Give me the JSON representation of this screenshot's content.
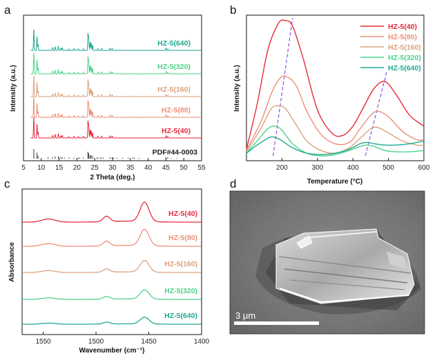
{
  "colors": {
    "HZ-5(40)": "#e8283a",
    "HZ-5(80)": "#ec8f78",
    "HZ-5(160)": "#dca27b",
    "HZ-5(320)": "#4cd28a",
    "HZ-5(640)": "#1fa891",
    "reference": "#444444",
    "peak_guides": "#7b3fe4"
  },
  "chart_data": [
    {
      "panel": "a",
      "type": "line",
      "xlabel": "2 Theta (deg.)",
      "ylabel": "Intensity (a.u.)",
      "xlim": [
        5,
        55
      ],
      "xticks": [
        5,
        10,
        15,
        20,
        25,
        30,
        35,
        40,
        45,
        50,
        55
      ],
      "stacked": true,
      "series": [
        {
          "name": "HZ-5(640)",
          "order": 5
        },
        {
          "name": "HZ-5(320)",
          "order": 4
        },
        {
          "name": "HZ-5(160)",
          "order": 3
        },
        {
          "name": "HZ-5(80)",
          "order": 2
        },
        {
          "name": "HZ-5(40)",
          "order": 1
        }
      ],
      "reference": {
        "name": "PDF#44-0003",
        "peaks": [
          {
            "x": 7.9,
            "h": 1.0
          },
          {
            "x": 8.8,
            "h": 0.62
          },
          {
            "x": 9.1,
            "h": 0.3
          },
          {
            "x": 11.9,
            "h": 0.15
          },
          {
            "x": 13.2,
            "h": 0.16
          },
          {
            "x": 13.9,
            "h": 0.22
          },
          {
            "x": 14.8,
            "h": 0.25
          },
          {
            "x": 15.5,
            "h": 0.14
          },
          {
            "x": 15.9,
            "h": 0.14
          },
          {
            "x": 16.5,
            "h": 0.1
          },
          {
            "x": 17.8,
            "h": 0.12
          },
          {
            "x": 19.2,
            "h": 0.1
          },
          {
            "x": 20.4,
            "h": 0.12
          },
          {
            "x": 20.8,
            "h": 0.1
          },
          {
            "x": 21.8,
            "h": 0.12
          },
          {
            "x": 23.1,
            "h": 0.72
          },
          {
            "x": 23.3,
            "h": 0.55
          },
          {
            "x": 23.7,
            "h": 0.38
          },
          {
            "x": 24.0,
            "h": 0.34
          },
          {
            "x": 24.4,
            "h": 0.28
          },
          {
            "x": 25.6,
            "h": 0.1
          },
          {
            "x": 25.9,
            "h": 0.12
          },
          {
            "x": 26.6,
            "h": 0.1
          },
          {
            "x": 26.9,
            "h": 0.12
          },
          {
            "x": 27.4,
            "h": 0.1
          },
          {
            "x": 29.3,
            "h": 0.14
          },
          {
            "x": 29.9,
            "h": 0.14
          },
          {
            "x": 30.3,
            "h": 0.12
          },
          {
            "x": 31.3,
            "h": 0.1
          },
          {
            "x": 32.8,
            "h": 0.1
          },
          {
            "x": 34.4,
            "h": 0.1
          },
          {
            "x": 35.7,
            "h": 0.1
          },
          {
            "x": 36.1,
            "h": 0.1
          },
          {
            "x": 37.5,
            "h": 0.08
          },
          {
            "x": 45.0,
            "h": 0.14
          },
          {
            "x": 45.5,
            "h": 0.14
          },
          {
            "x": 46.5,
            "h": 0.06
          },
          {
            "x": 48.0,
            "h": 0.06
          }
        ]
      }
    },
    {
      "panel": "b",
      "type": "line",
      "xlabel": "Temperature (°C)",
      "ylabel": "Intensity (a.u.)",
      "xlim": [
        100,
        600
      ],
      "xticks": [
        200,
        300,
        400,
        500,
        600
      ],
      "legend": "top-right",
      "series": [
        {
          "name": "HZ-5(40)",
          "x": [
            100,
            130,
            160,
            190,
            210,
            230,
            260,
            300,
            340,
            370,
            400,
            430,
            460,
            490,
            520,
            560,
            600
          ],
          "values": [
            0.05,
            0.38,
            0.78,
            0.98,
            1.0,
            0.96,
            0.72,
            0.34,
            0.17,
            0.15,
            0.22,
            0.36,
            0.5,
            0.55,
            0.46,
            0.3,
            0.22
          ]
        },
        {
          "name": "HZ-5(80)",
          "x": [
            100,
            140,
            170,
            190,
            210,
            240,
            270,
            310,
            350,
            390,
            420,
            450,
            470,
            500,
            540,
            580,
            600
          ],
          "values": [
            0.04,
            0.25,
            0.46,
            0.56,
            0.59,
            0.52,
            0.33,
            0.16,
            0.09,
            0.1,
            0.2,
            0.3,
            0.33,
            0.29,
            0.18,
            0.12,
            0.12
          ]
        },
        {
          "name": "HZ-5(160)",
          "x": [
            100,
            140,
            170,
            190,
            210,
            240,
            270,
            310,
            350,
            390,
            420,
            450,
            470,
            500,
            540,
            580,
            600
          ],
          "values": [
            0.03,
            0.2,
            0.35,
            0.37,
            0.35,
            0.23,
            0.11,
            0.04,
            0.02,
            0.06,
            0.13,
            0.2,
            0.21,
            0.17,
            0.11,
            0.08,
            0.08
          ]
        },
        {
          "name": "HZ-5(320)",
          "x": [
            100,
            130,
            160,
            180,
            200,
            230,
            270,
            310,
            350,
            390,
            420,
            440,
            460,
            490,
            520,
            560,
            600
          ],
          "values": [
            0.02,
            0.11,
            0.2,
            0.22,
            0.19,
            0.09,
            0.02,
            0.0,
            0.01,
            0.04,
            0.07,
            0.08,
            0.07,
            0.04,
            0.03,
            0.03,
            0.04
          ]
        },
        {
          "name": "HZ-5(640)",
          "x": [
            100,
            130,
            160,
            175,
            195,
            230,
            270,
            310,
            350,
            390,
            420,
            440,
            460,
            490,
            520,
            560,
            600
          ],
          "values": [
            0.02,
            0.08,
            0.13,
            0.14,
            0.12,
            0.06,
            0.02,
            0.01,
            0.02,
            0.05,
            0.09,
            0.1,
            0.09,
            0.08,
            0.08,
            0.09,
            0.11
          ]
        }
      ],
      "guides": [
        {
          "x": [
            175,
            230
          ],
          "y": [
            0.0,
            1.02
          ]
        },
        {
          "x": [
            435,
            495
          ],
          "y": [
            0.0,
            0.62
          ]
        }
      ]
    },
    {
      "panel": "c",
      "type": "line",
      "xlabel": "Wavenumber (cm⁻¹)",
      "ylabel": "Absorbance",
      "xlim": [
        1570,
        1400
      ],
      "xticks": [
        1550,
        1500,
        1450,
        1400
      ],
      "stacked": true,
      "series": [
        {
          "name": "HZ-5(40)",
          "order": 5,
          "scale": 1.0
        },
        {
          "name": "HZ-5(80)",
          "order": 4,
          "scale": 0.85
        },
        {
          "name": "HZ-5(160)",
          "order": 3,
          "scale": 0.6
        },
        {
          "name": "HZ-5(320)",
          "order": 2,
          "scale": 0.48
        },
        {
          "name": "HZ-5(640)",
          "order": 1,
          "scale": 0.35
        }
      ]
    }
  ],
  "sem": {
    "panel": "d",
    "scale_bar": "3 μm"
  }
}
